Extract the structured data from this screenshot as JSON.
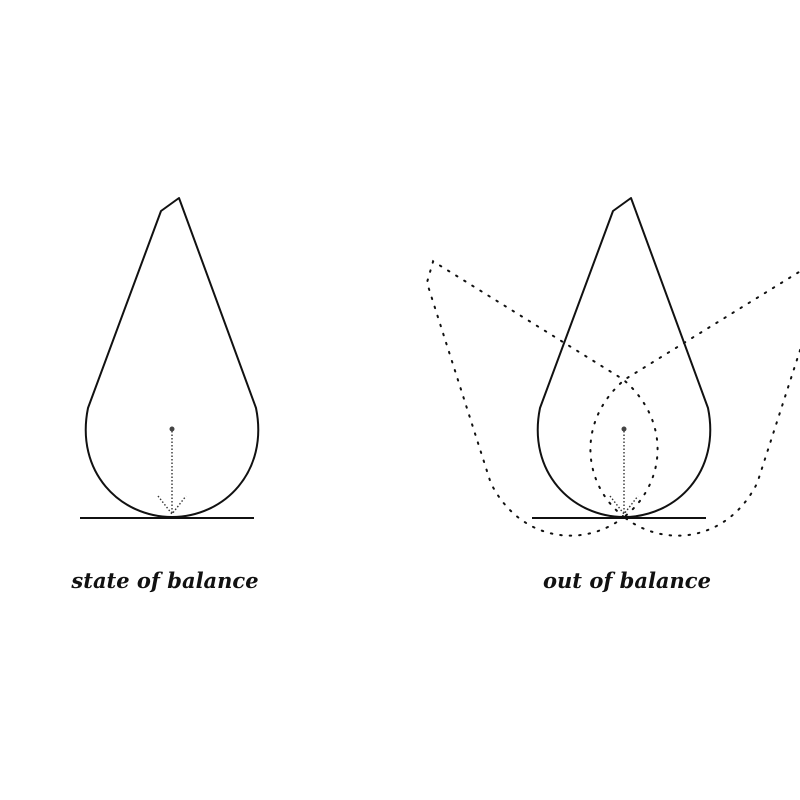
{
  "panels": [
    {
      "caption": "state of balance"
    },
    {
      "caption": "out of balance"
    }
  ],
  "colors": {
    "stroke": "#111111",
    "background": "#ffffff"
  }
}
